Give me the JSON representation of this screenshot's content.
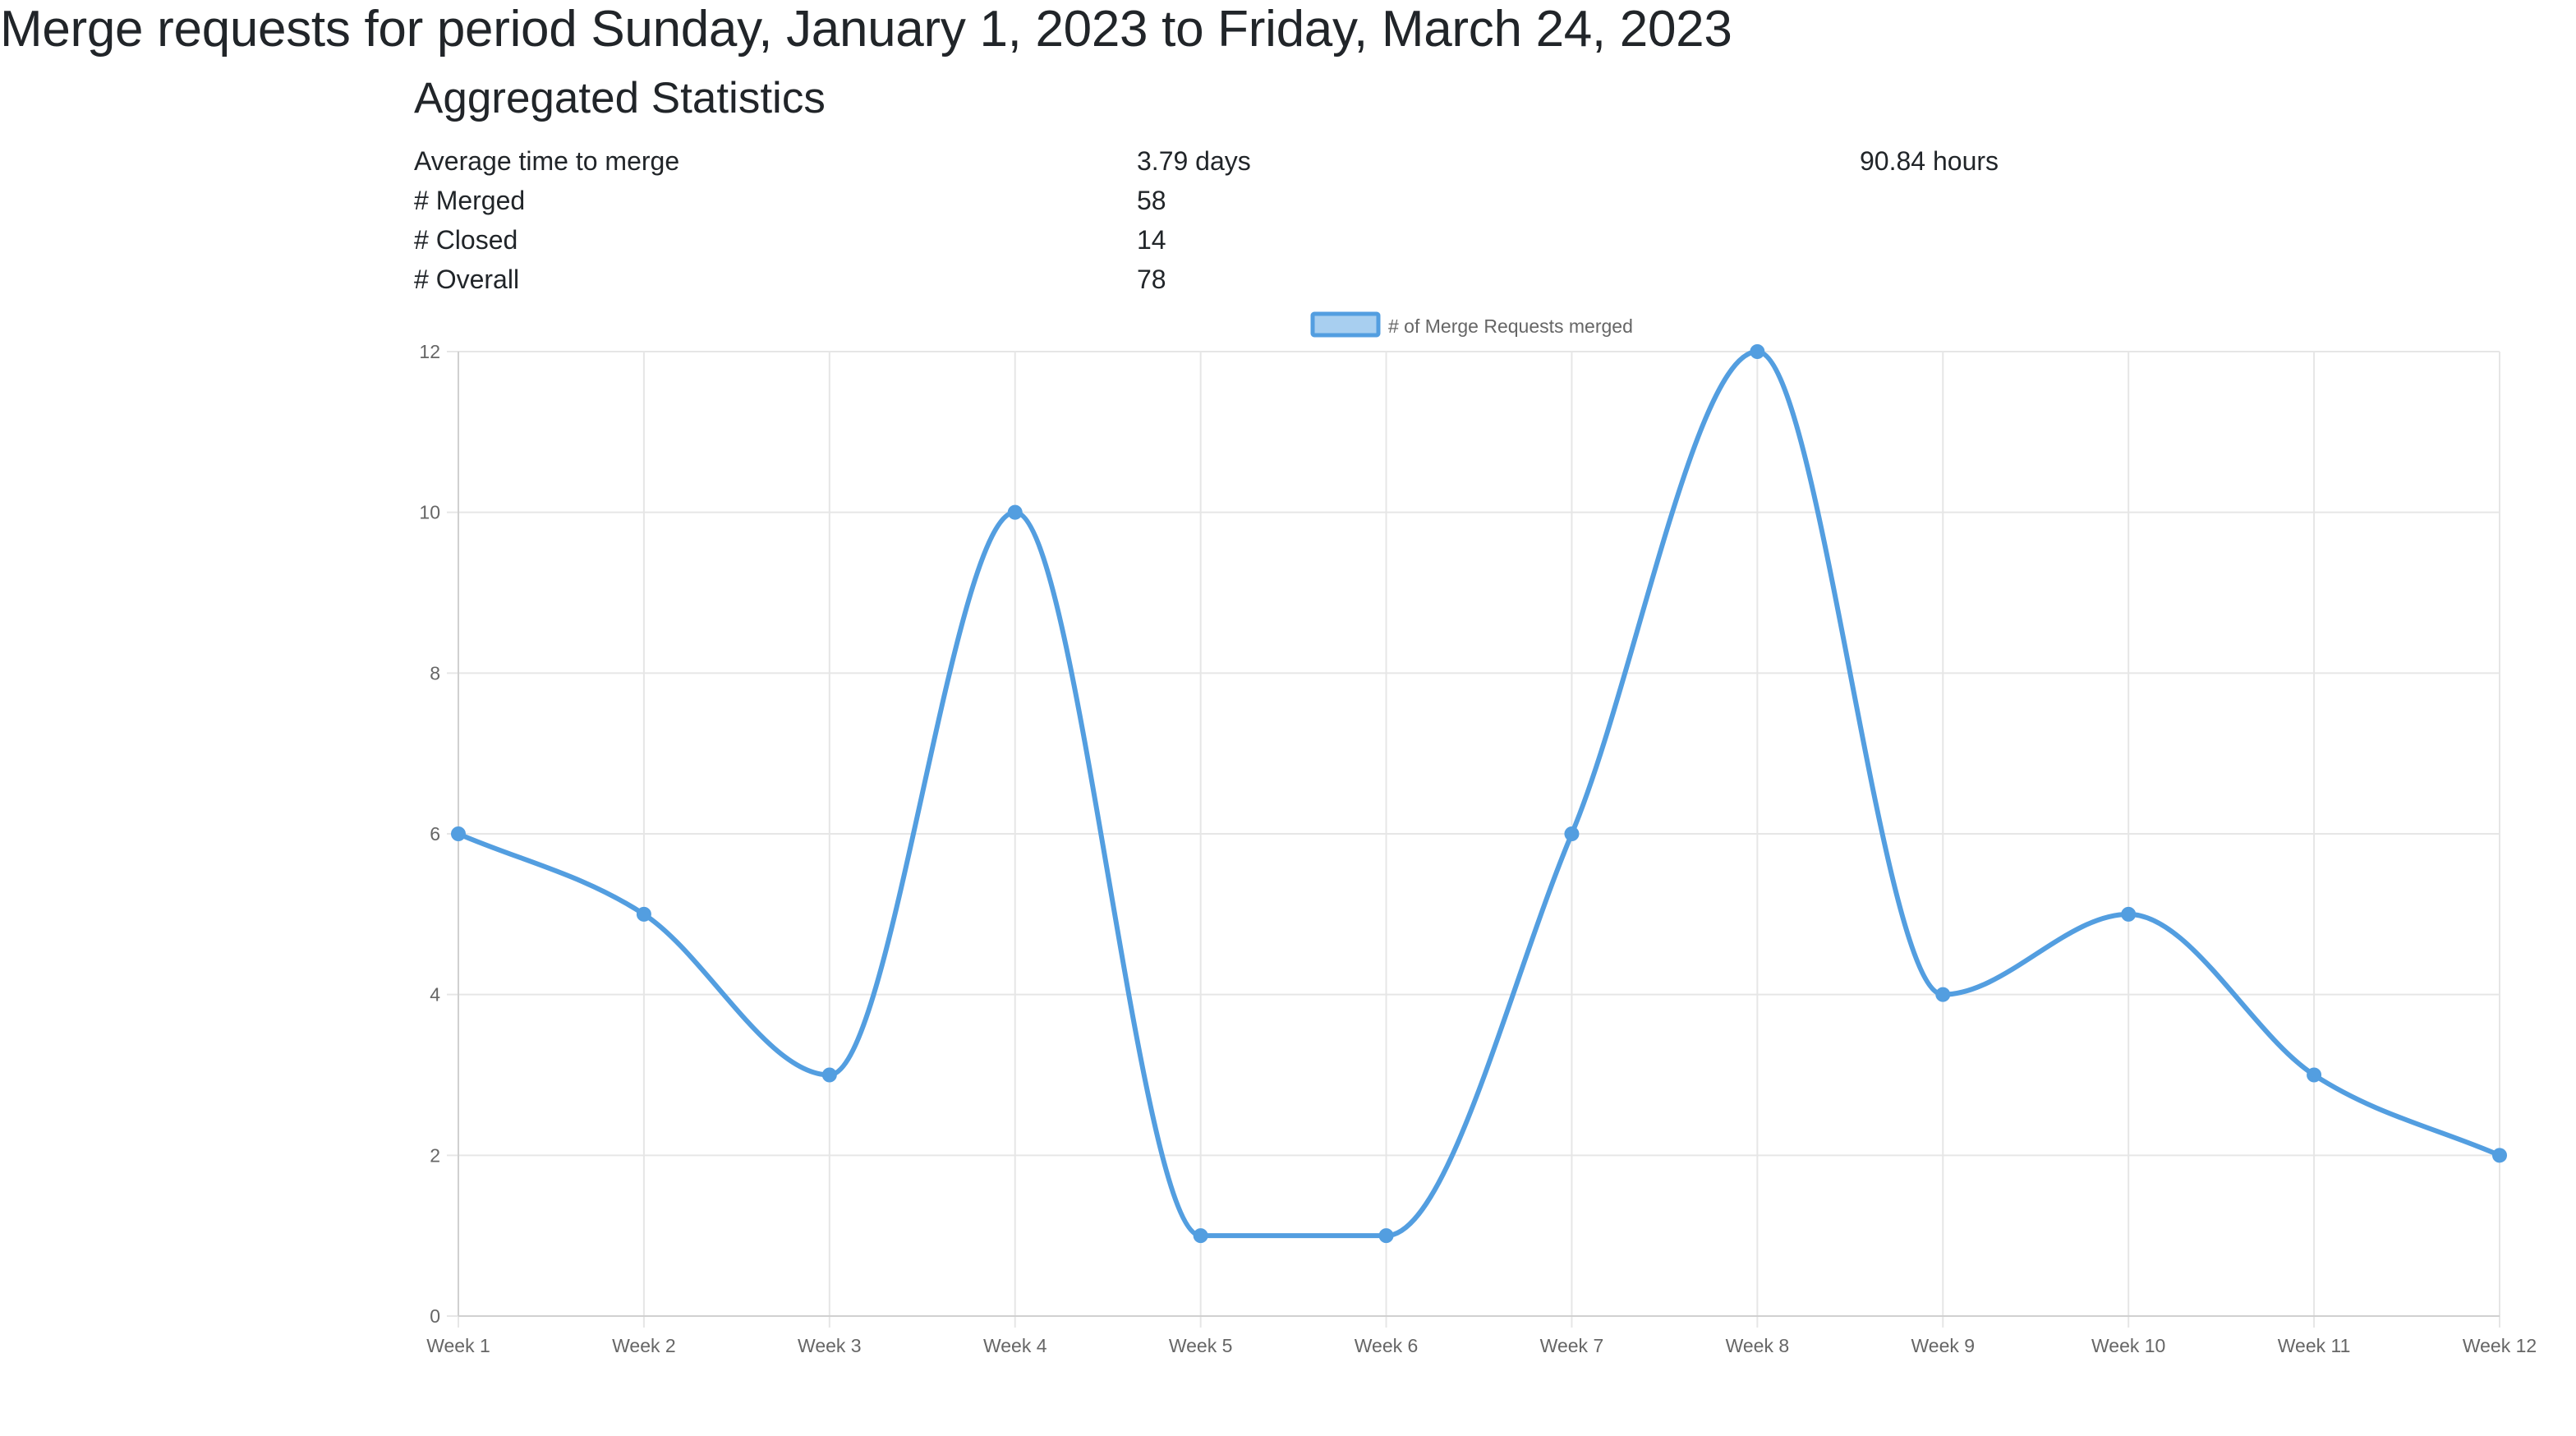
{
  "page": {
    "title": "Merge requests for period Sunday, January 1, 2023 to Friday, March 24, 2023",
    "section_title": "Aggregated Statistics"
  },
  "stats": [
    {
      "label": "Average time to merge",
      "value": "3.79 days",
      "extra": "90.84 hours"
    },
    {
      "label": "# Merged",
      "value": "58",
      "extra": ""
    },
    {
      "label": "# Closed",
      "value": "14",
      "extra": ""
    },
    {
      "label": "# Overall",
      "value": "78",
      "extra": ""
    }
  ],
  "colors": {
    "line": "#539ee0",
    "legend_fill": "#a8cff0",
    "grid": "#e6e6e6",
    "axis_text": "#666666"
  },
  "chart_data": {
    "type": "line",
    "title": "",
    "xlabel": "",
    "ylabel": "",
    "categories": [
      "Week 1",
      "Week 2",
      "Week 3",
      "Week 4",
      "Week 5",
      "Week 6",
      "Week 7",
      "Week 8",
      "Week 9",
      "Week 10",
      "Week 11",
      "Week 12"
    ],
    "series": [
      {
        "name": "# of Merge Requests merged",
        "values": [
          6,
          5,
          3,
          10,
          1,
          1,
          6,
          12,
          4,
          5,
          3,
          2
        ]
      }
    ],
    "ylim": [
      0,
      12
    ],
    "yticks": [
      0,
      2,
      4,
      6,
      8,
      10,
      12
    ],
    "grid": true,
    "legend": "top-center",
    "smooth": true
  }
}
